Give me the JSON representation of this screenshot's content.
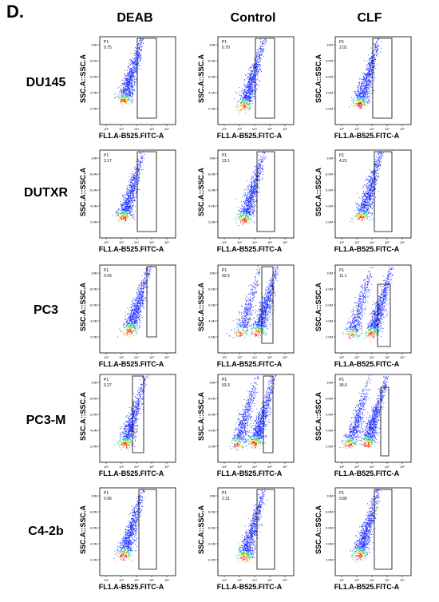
{
  "figure": {
    "panel_letter": "D."
  },
  "chart_data": {
    "type": "scatter",
    "layout": "grid",
    "columns": [
      "DEAB",
      "Control",
      "CLF"
    ],
    "rows": [
      "DU145",
      "DUTXR",
      "PC3",
      "PC3-M",
      "C4-2b"
    ],
    "xlabel": "FL1.A-B525.FITC-A",
    "ylabel": "SSC.A::SSC.A",
    "x_scale": "log",
    "x_ticks": [
      "10²",
      "10³",
      "10⁴",
      "10⁵",
      "10⁶"
    ],
    "xlim": [
      100,
      1000000
    ],
    "y_ticks": [
      "2.0M",
      "4.0M",
      "6.0M",
      "8.0M",
      "10M"
    ],
    "ylim": [
      0,
      10000000
    ],
    "gate_name": "P1",
    "gate_percent": [
      [
        "0.75",
        "0.70",
        "2.01"
      ],
      [
        "2.17",
        "13.1",
        "4.21"
      ],
      [
        "0.43",
        "62.6",
        "11.1"
      ],
      [
        "0.27",
        "63.3",
        "30.6"
      ],
      [
        "0.96",
        "2.31",
        "0.80"
      ]
    ]
  }
}
